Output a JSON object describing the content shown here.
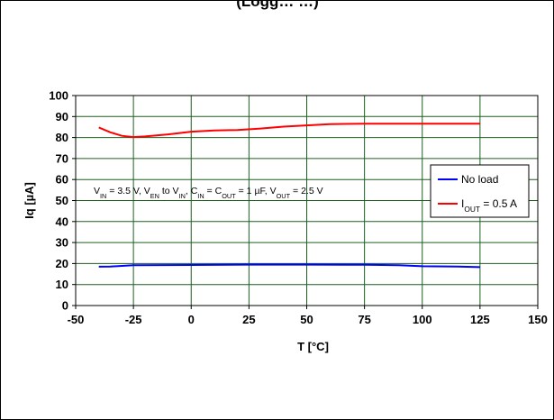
{
  "chart_data": {
    "type": "line",
    "title_fragment": "(Logg… …)",
    "xlabel": "T [°C]",
    "ylabel": "Iq [µA]",
    "xlim": [
      -50,
      150
    ],
    "ylim": [
      0,
      100
    ],
    "xticks": [
      "-50",
      "-25",
      "0",
      "25",
      "50",
      "75",
      "100",
      "125",
      "150"
    ],
    "yticks": [
      "0",
      "10",
      "20",
      "30",
      "40",
      "50",
      "60",
      "70",
      "80",
      "90",
      "100"
    ],
    "grid": true,
    "legend_position": "right",
    "annotation": {
      "parts": [
        {
          "t": "V"
        },
        {
          "t": "IN",
          "sub": true
        },
        {
          "t": " = 3.5 V, V"
        },
        {
          "t": "EN",
          "sub": true
        },
        {
          "t": " to V"
        },
        {
          "t": "IN",
          "sub": true
        },
        {
          "t": ", C"
        },
        {
          "t": "IN",
          "sub": true
        },
        {
          "t": " = C"
        },
        {
          "t": "OUT",
          "sub": true
        },
        {
          "t": " = 1 µF, V"
        },
        {
          "t": "OUT",
          "sub": true
        },
        {
          "t": " = 2.5 V"
        }
      ]
    },
    "series": [
      {
        "name": "No load",
        "color": "#0000ff",
        "x": [
          -40,
          -35,
          -25,
          0,
          25,
          50,
          75,
          90,
          100,
          115,
          125
        ],
        "y": [
          18.5,
          18.6,
          19.2,
          19.3,
          19.5,
          19.5,
          19.4,
          19.2,
          18.7,
          18.6,
          18.3
        ]
      },
      {
        "name_parts": [
          {
            "t": "I"
          },
          {
            "t": "OUT",
            "sub": true
          },
          {
            "t": " = 0.5 A"
          }
        ],
        "color": "#ff0000",
        "x": [
          -40,
          -35,
          -30,
          -25,
          -20,
          -10,
          0,
          10,
          20,
          30,
          40,
          50,
          60,
          75,
          100,
          125
        ],
        "y": [
          84.8,
          82.5,
          80.8,
          80.2,
          80.5,
          81.5,
          82.8,
          83.4,
          83.6,
          84.3,
          85.2,
          85.8,
          86.4,
          86.6,
          86.6,
          86.6
        ]
      }
    ]
  }
}
